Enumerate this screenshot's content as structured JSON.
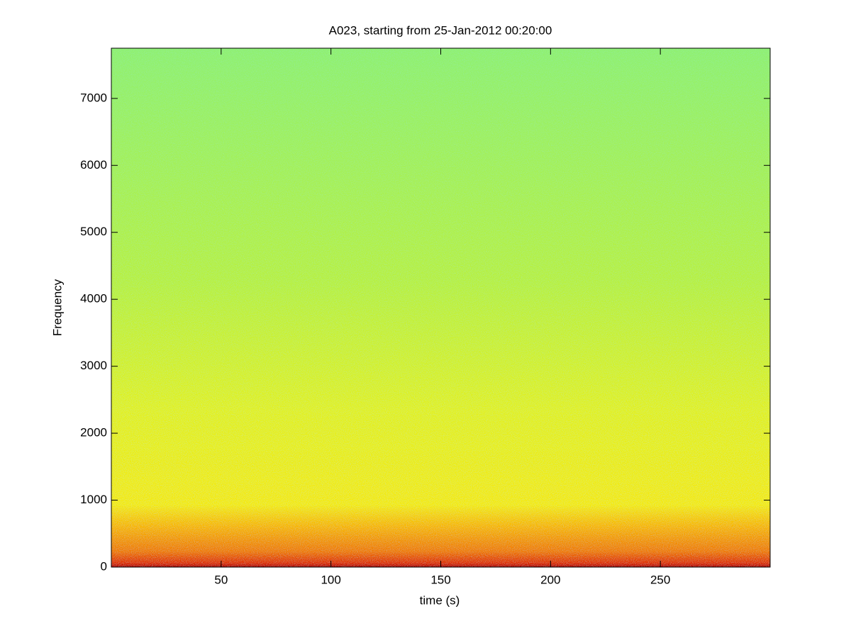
{
  "chart_data": {
    "type": "spectrogram",
    "title": "A023, starting from 25-Jan-2012 00:20:00",
    "xlabel": "time (s)",
    "ylabel": "Frequency",
    "xlim": [
      0,
      300
    ],
    "xticks": [
      50,
      100,
      150,
      200,
      250
    ],
    "ylim": [
      0,
      7750
    ],
    "yticks": [
      0,
      1000,
      2000,
      3000,
      4000,
      5000,
      6000,
      7000
    ]
  }
}
